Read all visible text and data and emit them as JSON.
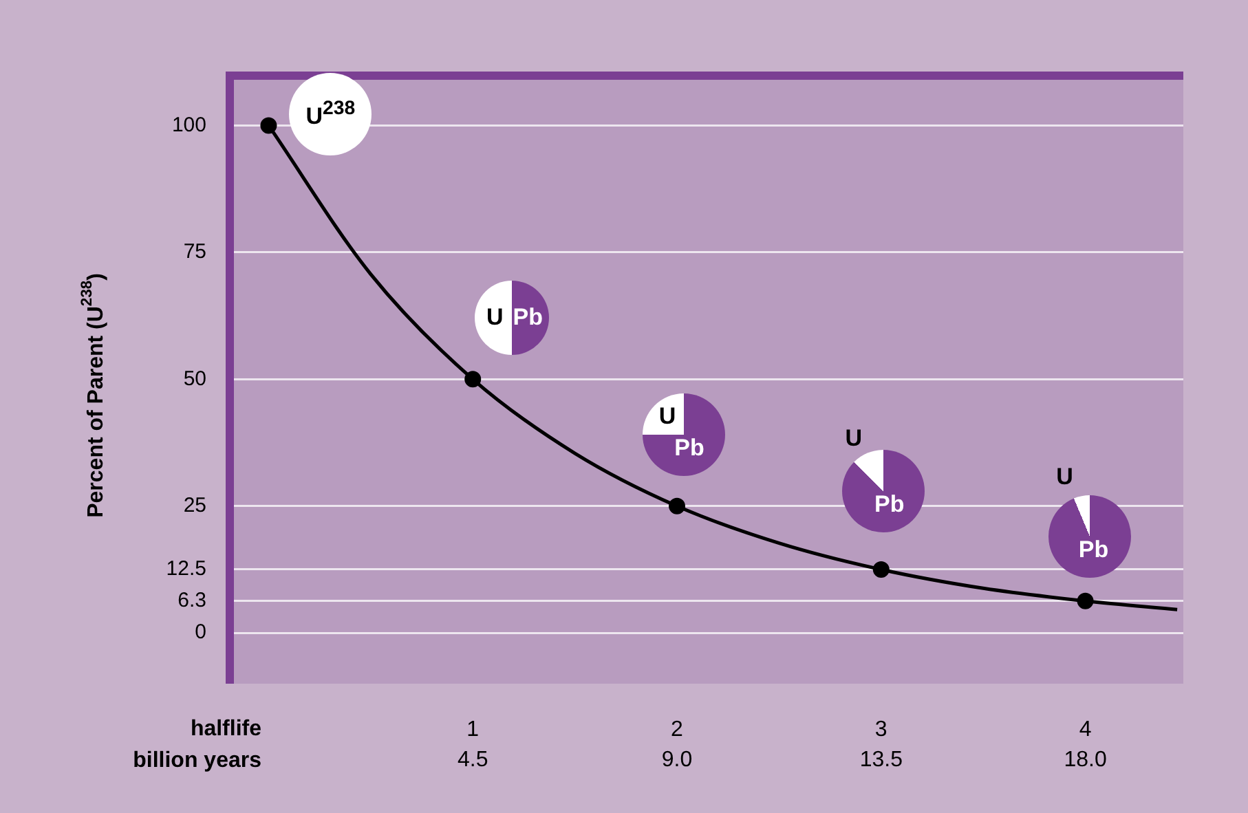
{
  "chart_data": {
    "type": "line",
    "ylabel": "Percent of Parent (U$^{238}$)",
    "xlabel": "halflife",
    "x2label": "billion years",
    "series": [
      {
        "color": "#000000",
        "marker": "none",
        "x": [
          0,
          0.5,
          1,
          1.5,
          2,
          2.5,
          3,
          3.5,
          4,
          4.45
        ],
        "values": [
          100,
          70.7,
          50,
          35.4,
          25,
          17.7,
          12.5,
          8.8,
          6.3,
          4.6
        ]
      },
      {
        "type": "scatter",
        "color": "#000000",
        "marker": "circle",
        "x": [
          0,
          1,
          2,
          3,
          4
        ],
        "values": [
          100,
          50,
          25,
          12.5,
          6.3
        ]
      }
    ],
    "xlim": [
      -0.17,
      4.48
    ],
    "xticks": [
      1,
      2,
      3,
      4
    ],
    "x2lim": [
      -0.765,
      20.16
    ],
    "x2ticks": [
      4.5,
      {
        "value": 9,
        "label": "9.0"
      },
      13.5,
      {
        "value": 18,
        "label": "18.0"
      }
    ],
    "ylim": [
      -10,
      109
    ],
    "yticks": [
      0,
      6.3,
      12.5,
      25,
      50,
      75,
      100
    ],
    "grid": "y",
    "annotations": [
      "U$^{238}$",
      "U",
      "Pb",
      "U",
      "Pb",
      "U",
      "Pb",
      "U",
      "Pb"
    ]
  }
}
